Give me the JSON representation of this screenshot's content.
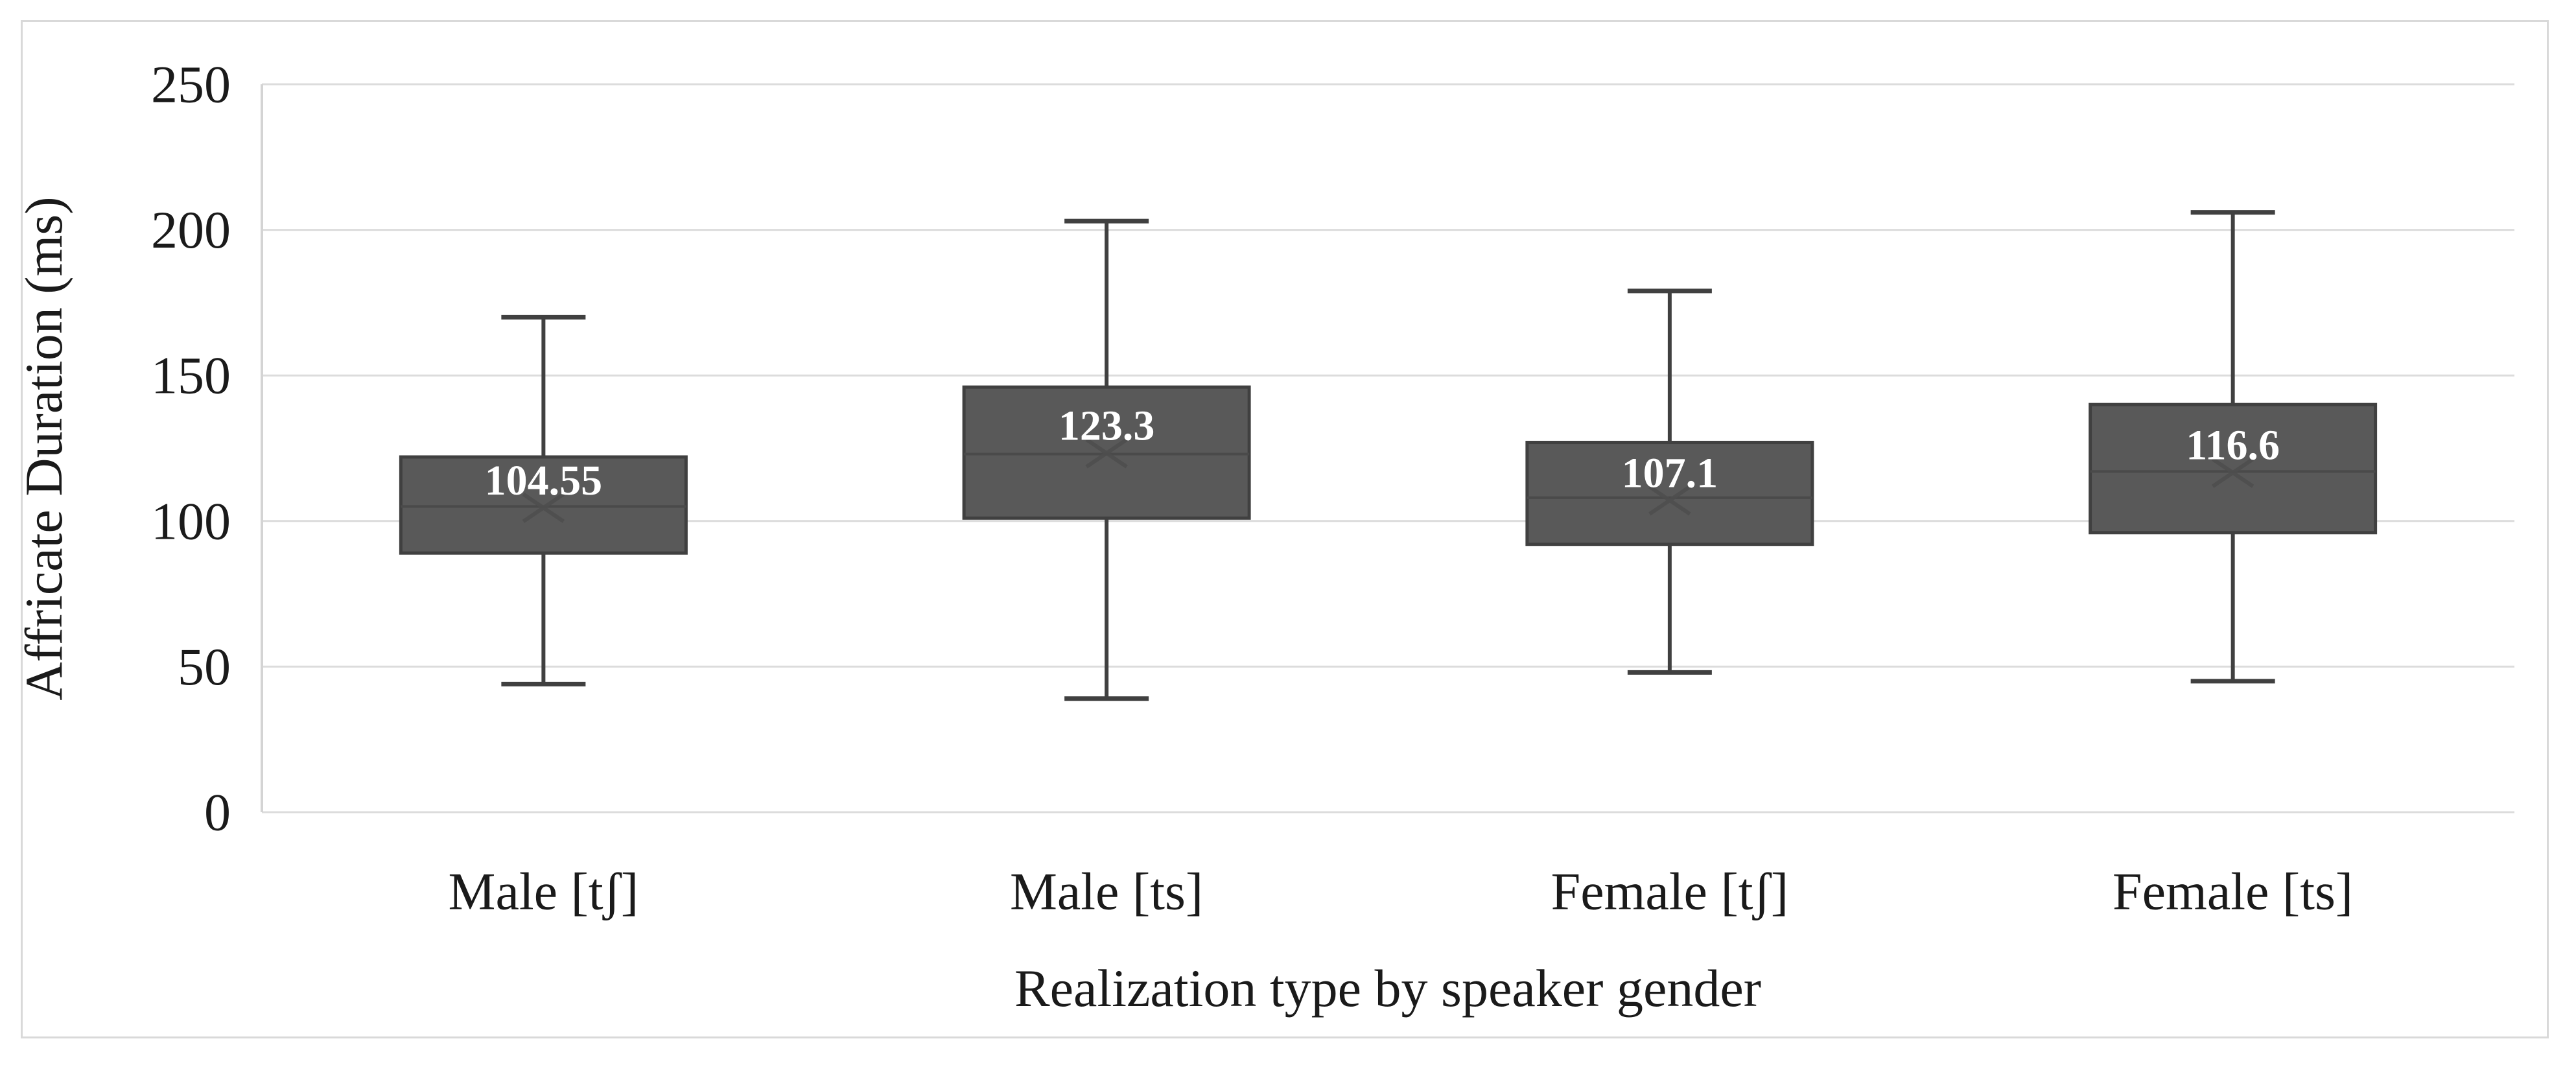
{
  "figure": {
    "description": "Box-and-whisker chart of affricate duration by realization type and speaker gender"
  },
  "chart_data": {
    "type": "boxplot",
    "title": "",
    "xlabel": "Realization type by speaker gender",
    "ylabel": "Affricate Duration (ms)",
    "ylim": [
      0,
      250
    ],
    "yticks": [
      0,
      50,
      100,
      150,
      200,
      250
    ],
    "grid": "horizontal-light-gray",
    "legend": "none",
    "categories": [
      "Male [tʃ]",
      "Male [ts]",
      "Female [tʃ]",
      "Female [ts]"
    ],
    "series": [
      {
        "category": "Male [tʃ]",
        "whisker_low": 44,
        "q1": 89,
        "median": 105,
        "q3": 122,
        "whisker_high": 170,
        "mean": 104.55,
        "mean_label": "104.55"
      },
      {
        "category": "Male [ts]",
        "whisker_low": 39,
        "q1": 101,
        "median": 123,
        "q3": 146,
        "whisker_high": 203,
        "mean": 123.3,
        "mean_label": "123.3"
      },
      {
        "category": "Female [tʃ]",
        "whisker_low": 48,
        "q1": 92,
        "median": 108,
        "q3": 127,
        "whisker_high": 179,
        "mean": 107.1,
        "mean_label": "107.1"
      },
      {
        "category": "Female [ts]",
        "whisker_low": 45,
        "q1": 96,
        "median": 117,
        "q3": 140,
        "whisker_high": 206,
        "mean": 116.6,
        "mean_label": "116.6"
      }
    ],
    "colors": {
      "background": "#ffffff",
      "frame_border": "#d9d9d9",
      "gridline": "#dcdcdc",
      "box_fill": "#595959",
      "box_border": "#404040",
      "median_line": "#4a4a4a",
      "whisker": "#404040",
      "mean_marker": "#4d4d4d",
      "mean_label_text": "#ffffff",
      "axis_text": "#1a1a1a"
    }
  }
}
